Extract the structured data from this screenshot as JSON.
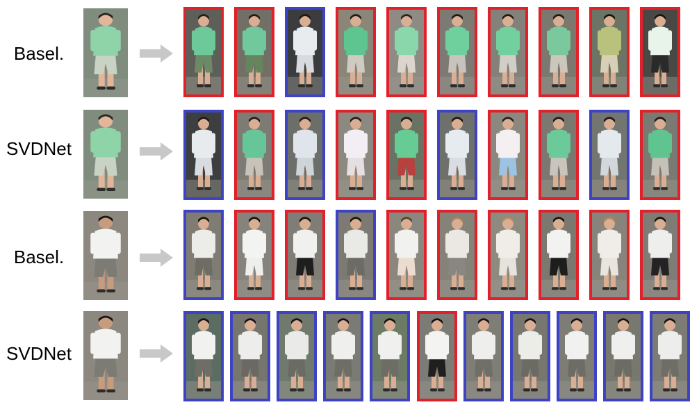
{
  "rows": [
    {
      "method": "Basel.",
      "query_palette": {
        "bg": "#7f8c7e",
        "top": "#8fd3a8",
        "bottom": "#c9d3c4",
        "skin": "#e2b69a",
        "hair": "#2a2420"
      },
      "results": [
        {
          "match": false,
          "bg": "#5f5f5a",
          "top": "#6ec99a",
          "bottom": "#6d8a66",
          "hair": "#241e1b"
        },
        {
          "match": false,
          "bg": "#716f66",
          "top": "#71c89c",
          "bottom": "#67855c",
          "hair": "#221c18"
        },
        {
          "match": true,
          "bg": "#3a3c3e",
          "top": "#e8ecef",
          "bottom": "#d7dbe0",
          "hair": "#1d1816"
        },
        {
          "match": false,
          "bg": "#8a8678",
          "top": "#5ec490",
          "bottom": "#cfcbc2",
          "hair": "#1e1a18"
        },
        {
          "match": false,
          "bg": "#8d8b84",
          "top": "#8ad7ac",
          "bottom": "#dcd5ce",
          "hair": "#2a221e"
        },
        {
          "match": false,
          "bg": "#7d7a73",
          "top": "#6fcf9d",
          "bottom": "#c8c4bd",
          "hair": "#1c1816"
        },
        {
          "match": false,
          "bg": "#83817a",
          "top": "#72d09f",
          "bottom": "#d1cec7",
          "hair": "#201b18"
        },
        {
          "match": false,
          "bg": "#7a786f",
          "top": "#79c99c",
          "bottom": "#cbc7bd",
          "hair": "#1f1a17"
        },
        {
          "match": false,
          "bg": "#6c7565",
          "top": "#b8c27c",
          "bottom": "#d8d0b6",
          "hair": "#151312"
        },
        {
          "match": false,
          "bg": "#4a4844",
          "top": "#e8f3ea",
          "bottom": "#2a2a2a",
          "hair": "#181513"
        }
      ]
    },
    {
      "method": "SVDNet",
      "query_palette": {
        "bg": "#7f8c7e",
        "top": "#8fd3a8",
        "bottom": "#c9d3c4",
        "skin": "#e2b69a",
        "hair": "#2a2420"
      },
      "results": [
        {
          "match": true,
          "bg": "#3c3e40",
          "top": "#e7ebee",
          "bottom": "#d8dce1",
          "hair": "#1c1816"
        },
        {
          "match": false,
          "bg": "#7e7b74",
          "top": "#67c697",
          "bottom": "#c8c3ba",
          "hair": "#221c19"
        },
        {
          "match": true,
          "bg": "#6c6e6a",
          "top": "#dfe5ea",
          "bottom": "#cfd4d9",
          "hair": "#1f1a18"
        },
        {
          "match": false,
          "bg": "#8c8980",
          "top": "#f2eef3",
          "bottom": "#e6dfe2",
          "hair": "#231d1a"
        },
        {
          "match": false,
          "bg": "#6a7263",
          "top": "#66cc93",
          "bottom": "#b8413e",
          "hair": "#1d1916"
        },
        {
          "match": true,
          "bg": "#6e706b",
          "top": "#e6ebef",
          "bottom": "#d9dde1",
          "hair": "#1b1715"
        },
        {
          "match": false,
          "bg": "#8b8880",
          "top": "#f4f0f2",
          "bottom": "#9cc4e2",
          "hair": "#241e1b"
        },
        {
          "match": false,
          "bg": "#7a7870",
          "top": "#6cc999",
          "bottom": "#c9c5bc",
          "hair": "#1e1a17"
        },
        {
          "match": true,
          "bg": "#737670",
          "top": "#e4e9ed",
          "bottom": "#d2d7dc",
          "hair": "#1c1816"
        },
        {
          "match": false,
          "bg": "#7b7a72",
          "top": "#5fc48f",
          "bottom": "#c4c1b8",
          "hair": "#1f1a17"
        }
      ]
    },
    {
      "method": "Basel.",
      "query_palette": {
        "bg": "#8c877f",
        "top": "#f2f2f0",
        "bottom": "#7d7c74",
        "skin": "#c79c7e",
        "hair": "#181513"
      },
      "results": [
        {
          "match": true,
          "bg": "#7f7c74",
          "top": "#ecece9",
          "bottom": "#6d6c65",
          "hair": "#171412"
        },
        {
          "match": false,
          "bg": "#85837c",
          "top": "#f3f3f1",
          "bottom": "#eeeeec",
          "hair": "#151311"
        },
        {
          "match": false,
          "bg": "#807d76",
          "top": "#f0f0ee",
          "bottom": "#1e1e1e",
          "hair": "#161412"
        },
        {
          "match": true,
          "bg": "#7c7a73",
          "top": "#e9e9e6",
          "bottom": "#6c6b64",
          "hair": "#171412"
        },
        {
          "match": false,
          "bg": "#8a877f",
          "top": "#f1f1ef",
          "bottom": "#ecdcd0",
          "hair": "#5a3f2c"
        },
        {
          "match": false,
          "bg": "#858278",
          "top": "#ebe7e2",
          "bottom": "#8a8681",
          "hair": "#a7845e"
        },
        {
          "match": false,
          "bg": "#8d8a80",
          "top": "#f0ede8",
          "bottom": "#e6e2dc",
          "hair": "#b28b60"
        },
        {
          "match": false,
          "bg": "#7a786f",
          "top": "#f2f2f0",
          "bottom": "#1d1d1d",
          "hair": "#161412"
        },
        {
          "match": false,
          "bg": "#87847b",
          "top": "#f0ede9",
          "bottom": "#e8e4de",
          "hair": "#b0875c"
        },
        {
          "match": false,
          "bg": "#7e7c75",
          "top": "#eeeeec",
          "bottom": "#232323",
          "hair": "#151311"
        }
      ]
    },
    {
      "method": "SVDNet",
      "query_palette": {
        "bg": "#8c877f",
        "top": "#f2f2f0",
        "bottom": "#7d7c74",
        "skin": "#c79c7e",
        "hair": "#181513"
      },
      "results": [
        {
          "match": true,
          "bg": "#5b6c63",
          "top": "#f1f1ef",
          "bottom": "#6e6d66",
          "hair": "#171412"
        },
        {
          "match": true,
          "bg": "#76766f",
          "top": "#ededeb",
          "bottom": "#6a6963",
          "hair": "#161412"
        },
        {
          "match": true,
          "bg": "#6f7a6d",
          "top": "#eaeae8",
          "bottom": "#6b6a63",
          "hair": "#171412"
        },
        {
          "match": true,
          "bg": "#7a7b74",
          "top": "#efefed",
          "bottom": "#6e6d66",
          "hair": "#171412"
        },
        {
          "match": true,
          "bg": "#6c7b66",
          "top": "#f0f0ee",
          "bottom": "#6d6c65",
          "hair": "#161412"
        },
        {
          "match": false,
          "bg": "#7b7c76",
          "top": "#f3f3f1",
          "bottom": "#1f1f1f",
          "hair": "#151311"
        },
        {
          "match": true,
          "bg": "#7e7d76",
          "top": "#eeeeec",
          "bottom": "#6f6e67",
          "hair": "#171412"
        },
        {
          "match": true,
          "bg": "#77776f",
          "top": "#ecece9",
          "bottom": "#6b6a63",
          "hair": "#171412"
        },
        {
          "match": true,
          "bg": "#7d7c75",
          "top": "#f1f1ef",
          "bottom": "#6d6c65",
          "hair": "#171412"
        },
        {
          "match": true,
          "bg": "#79786f",
          "top": "#efefed",
          "bottom": "#6c6b64",
          "hair": "#171412"
        },
        {
          "match": true,
          "bg": "#7c7b74",
          "top": "#ededeb",
          "bottom": "#6e6d66",
          "hair": "#171412"
        }
      ]
    }
  ],
  "colors": {
    "match_border": "#3d43c4",
    "mismatch_border": "#e2202a",
    "arrow": "#c8c8c8"
  }
}
